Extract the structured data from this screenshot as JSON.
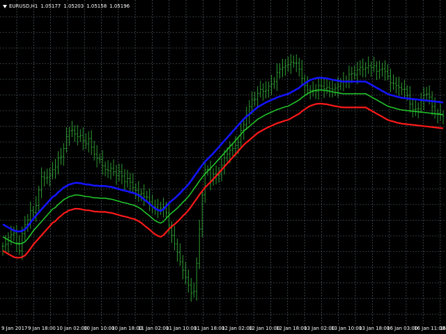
{
  "header": {
    "symbol": "EURUSD,H1",
    "open": "1.05177",
    "high": "1.05203",
    "low": "1.05158",
    "close": "1.05196"
  },
  "time_axis": {
    "labels": [
      "9 Jan 2017",
      "9 Jan 18:00",
      "10 Jan 02:00",
      "10 Jan 10:00",
      "10 Jan 18:00",
      "11 Jan 02:00",
      "11 Jan 10:00",
      "11 Jan 18:00",
      "12 Jan 02:00",
      "12 Jan 10:00",
      "12 Jan 18:00",
      "13 Jan 02:00",
      "13 Jan 10:00",
      "13 Jan 18:00",
      "16 Jan 03:00",
      "16 Jan 11:00",
      "16"
    ]
  },
  "colors": {
    "background": "#000000",
    "grid": "#5f6e7a",
    "bars": "#2e9c32",
    "upper_band": "#1414ff",
    "middle_band": "#22c42a",
    "lower_band": "#ff1a1a",
    "text": "#ffffff"
  },
  "chart_data": {
    "type": "line",
    "style": "OHLC bar chart with three moving-average bands",
    "grid": true,
    "x": [
      0,
      1,
      2,
      3,
      4,
      5,
      6,
      7,
      8,
      9,
      10,
      11,
      12,
      13,
      14,
      15,
      16,
      17,
      18,
      19,
      20,
      21,
      22,
      23,
      24,
      25,
      26,
      27,
      28,
      29,
      30,
      31,
      32,
      33,
      34,
      35,
      36,
      37,
      38,
      39,
      40,
      41,
      42,
      43,
      44,
      45,
      46,
      47,
      48,
      49,
      50,
      51,
      52,
      53,
      54,
      55,
      56,
      57,
      58,
      59,
      60,
      61,
      62,
      63,
      64,
      65,
      66,
      67,
      68,
      69,
      70,
      71,
      72,
      73,
      74,
      75,
      76,
      77,
      78,
      79,
      80,
      81,
      82,
      83,
      84,
      85,
      86,
      87,
      88,
      89,
      90,
      91,
      92,
      93,
      94,
      95,
      96,
      97,
      98,
      99,
      100,
      101,
      102,
      103,
      104,
      105,
      106,
      107,
      108,
      109,
      110,
      111,
      112,
      113,
      114,
      115,
      116,
      117,
      118,
      119,
      120,
      121,
      122,
      123,
      124,
      125,
      126,
      127,
      128,
      129,
      130,
      131,
      132,
      133,
      134,
      135,
      136,
      137,
      138,
      139,
      140,
      141,
      142,
      143,
      144,
      145,
      146,
      147,
      148,
      149,
      150,
      151,
      152,
      153,
      154,
      155,
      156,
      157,
      158,
      159
    ],
    "closes": [
      0.255,
      0.261,
      0.283,
      0.292,
      0.297,
      0.265,
      0.24,
      0.295,
      0.324,
      0.339,
      0.369,
      0.363,
      0.385,
      0.435,
      0.478,
      0.473,
      0.476,
      0.484,
      0.5,
      0.509,
      0.538,
      0.542,
      0.568,
      0.607,
      0.625,
      0.627,
      0.615,
      0.606,
      0.61,
      0.593,
      0.583,
      0.6,
      0.573,
      0.55,
      0.537,
      0.533,
      0.513,
      0.501,
      0.497,
      0.505,
      0.494,
      0.482,
      0.494,
      0.48,
      0.462,
      0.472,
      0.46,
      0.443,
      0.434,
      0.421,
      0.424,
      0.413,
      0.412,
      0.397,
      0.38,
      0.38,
      0.372,
      0.377,
      0.381,
      0.362,
      0.322,
      0.29,
      0.262,
      0.235,
      0.205,
      0.178,
      0.155,
      0.13,
      0.105,
      0.11,
      0.2,
      0.31,
      0.42,
      0.5,
      0.5,
      0.464,
      0.486,
      0.482,
      0.485,
      0.514,
      0.538,
      0.551,
      0.563,
      0.568,
      0.578,
      0.588,
      0.626,
      0.645,
      0.674,
      0.703,
      0.725,
      0.726,
      0.745,
      0.758,
      0.751,
      0.755,
      0.768,
      0.775,
      0.783,
      0.812,
      0.823,
      0.828,
      0.833,
      0.838,
      0.845,
      0.842,
      0.842,
      0.823,
      0.793,
      0.77,
      0.756,
      0.755,
      0.755,
      0.752,
      0.77,
      0.768,
      0.76,
      0.765,
      0.76,
      0.757,
      0.762,
      0.768,
      0.781,
      0.784,
      0.785,
      0.806,
      0.809,
      0.805,
      0.821,
      0.829,
      0.823,
      0.827,
      0.834,
      0.828,
      0.833,
      0.816,
      0.821,
      0.824,
      0.815,
      0.8,
      0.779,
      0.777,
      0.77,
      0.764,
      0.758,
      0.759,
      0.739,
      0.711,
      0.693,
      0.695,
      0.695,
      0.721,
      0.74,
      0.743,
      0.733,
      0.703,
      0.679,
      0.681,
      0.676,
      0.672
    ],
    "series": [
      {
        "values": [
          0.24,
          0.235,
          0.23,
          0.225,
          0.22,
          0.218,
          0.218,
          0.22,
          0.225,
          0.235,
          0.247,
          0.26,
          0.27,
          0.28,
          0.29,
          0.3,
          0.31,
          0.32,
          0.33,
          0.335,
          0.345,
          0.352,
          0.36,
          0.365,
          0.37,
          0.372,
          0.375,
          0.375,
          0.374,
          0.372,
          0.37,
          0.37,
          0.368,
          0.366,
          0.366,
          0.365,
          0.365,
          0.365,
          0.363,
          0.362,
          0.36,
          0.357,
          0.355,
          0.352,
          0.35,
          0.348,
          0.345,
          0.343,
          0.34,
          0.335,
          0.33,
          0.322,
          0.315,
          0.308,
          0.3,
          0.293,
          0.288,
          0.285,
          0.29,
          0.3,
          0.31,
          0.318,
          0.325,
          0.333,
          0.342,
          0.352,
          0.36,
          0.37,
          0.382,
          0.395,
          0.407,
          0.42,
          0.432,
          0.443,
          0.452,
          0.461,
          0.47,
          0.48,
          0.49,
          0.5,
          0.51,
          0.52,
          0.53,
          0.54,
          0.55,
          0.56,
          0.57,
          0.58,
          0.588,
          0.595,
          0.603,
          0.61,
          0.618,
          0.623,
          0.628,
          0.633,
          0.637,
          0.641,
          0.645,
          0.649,
          0.652,
          0.655,
          0.658,
          0.66,
          0.665,
          0.67,
          0.675,
          0.68,
          0.688,
          0.694,
          0.7,
          0.705,
          0.708,
          0.711,
          0.712,
          0.712,
          0.711,
          0.71,
          0.708,
          0.706,
          0.704,
          0.703,
          0.701,
          0.7,
          0.7,
          0.7,
          0.7,
          0.7,
          0.7,
          0.7,
          0.7,
          0.7,
          0.695,
          0.69,
          0.685,
          0.68,
          0.675,
          0.67,
          0.665,
          0.66,
          0.657,
          0.655,
          0.652,
          0.65,
          0.648,
          0.647,
          0.646,
          0.645,
          0.644,
          0.643,
          0.642,
          0.641,
          0.64,
          0.639,
          0.638,
          0.637,
          0.636,
          0.635,
          0.634,
          0.633
        ]
      },
      {
        "values": [
          0.285,
          0.28,
          0.275,
          0.27,
          0.266,
          0.263,
          0.262,
          0.264,
          0.269,
          0.279,
          0.291,
          0.304,
          0.314,
          0.324,
          0.334,
          0.344,
          0.354,
          0.364,
          0.374,
          0.379,
          0.389,
          0.396,
          0.404,
          0.409,
          0.414,
          0.416,
          0.419,
          0.419,
          0.418,
          0.416,
          0.414,
          0.414,
          0.412,
          0.41,
          0.41,
          0.409,
          0.409,
          0.409,
          0.407,
          0.406,
          0.404,
          0.401,
          0.399,
          0.396,
          0.394,
          0.392,
          0.389,
          0.387,
          0.384,
          0.379,
          0.374,
          0.366,
          0.359,
          0.352,
          0.344,
          0.337,
          0.332,
          0.329,
          0.334,
          0.344,
          0.354,
          0.362,
          0.369,
          0.377,
          0.386,
          0.396,
          0.404,
          0.414,
          0.426,
          0.439,
          0.451,
          0.464,
          0.476,
          0.487,
          0.496,
          0.505,
          0.514,
          0.524,
          0.534,
          0.544,
          0.554,
          0.564,
          0.574,
          0.584,
          0.594,
          0.604,
          0.614,
          0.624,
          0.632,
          0.639,
          0.647,
          0.654,
          0.662,
          0.667,
          0.672,
          0.677,
          0.681,
          0.685,
          0.689,
          0.693,
          0.696,
          0.699,
          0.702,
          0.704,
          0.709,
          0.714,
          0.719,
          0.724,
          0.732,
          0.738,
          0.744,
          0.749,
          0.752,
          0.755,
          0.756,
          0.756,
          0.755,
          0.754,
          0.752,
          0.75,
          0.748,
          0.747,
          0.745,
          0.744,
          0.744,
          0.744,
          0.744,
          0.744,
          0.744,
          0.744,
          0.744,
          0.744,
          0.739,
          0.734,
          0.729,
          0.724,
          0.719,
          0.714,
          0.709,
          0.704,
          0.701,
          0.699,
          0.696,
          0.694,
          0.692,
          0.691,
          0.69,
          0.689,
          0.688,
          0.687,
          0.686,
          0.685,
          0.684,
          0.683,
          0.682,
          0.681,
          0.68,
          0.679,
          0.678,
          0.677
        ]
      },
      {
        "values": [
          0.325,
          0.32,
          0.315,
          0.31,
          0.305,
          0.303,
          0.302,
          0.304,
          0.309,
          0.319,
          0.33,
          0.343,
          0.353,
          0.363,
          0.373,
          0.383,
          0.393,
          0.403,
          0.413,
          0.418,
          0.428,
          0.435,
          0.443,
          0.448,
          0.453,
          0.455,
          0.458,
          0.458,
          0.457,
          0.455,
          0.453,
          0.453,
          0.451,
          0.449,
          0.449,
          0.448,
          0.448,
          0.448,
          0.446,
          0.445,
          0.443,
          0.44,
          0.438,
          0.435,
          0.433,
          0.431,
          0.428,
          0.426,
          0.423,
          0.418,
          0.413,
          0.405,
          0.398,
          0.391,
          0.383,
          0.376,
          0.371,
          0.368,
          0.373,
          0.383,
          0.393,
          0.401,
          0.408,
          0.416,
          0.425,
          0.435,
          0.443,
          0.453,
          0.465,
          0.478,
          0.49,
          0.503,
          0.515,
          0.526,
          0.535,
          0.544,
          0.553,
          0.563,
          0.573,
          0.583,
          0.593,
          0.603,
          0.613,
          0.623,
          0.633,
          0.643,
          0.653,
          0.663,
          0.671,
          0.678,
          0.686,
          0.693,
          0.701,
          0.706,
          0.711,
          0.716,
          0.72,
          0.724,
          0.728,
          0.732,
          0.735,
          0.738,
          0.741,
          0.743,
          0.748,
          0.753,
          0.758,
          0.763,
          0.771,
          0.777,
          0.783,
          0.788,
          0.791,
          0.794,
          0.795,
          0.795,
          0.794,
          0.793,
          0.791,
          0.789,
          0.787,
          0.786,
          0.784,
          0.783,
          0.783,
          0.783,
          0.783,
          0.783,
          0.783,
          0.783,
          0.783,
          0.783,
          0.778,
          0.773,
          0.768,
          0.763,
          0.758,
          0.753,
          0.748,
          0.743,
          0.74,
          0.738,
          0.735,
          0.733,
          0.731,
          0.73,
          0.729,
          0.728,
          0.727,
          0.726,
          0.725,
          0.724,
          0.723,
          0.722,
          0.721,
          0.72,
          0.719,
          0.718,
          0.717,
          0.716
        ]
      }
    ],
    "ylim": [
      0,
      1
    ],
    "legend": "none"
  }
}
